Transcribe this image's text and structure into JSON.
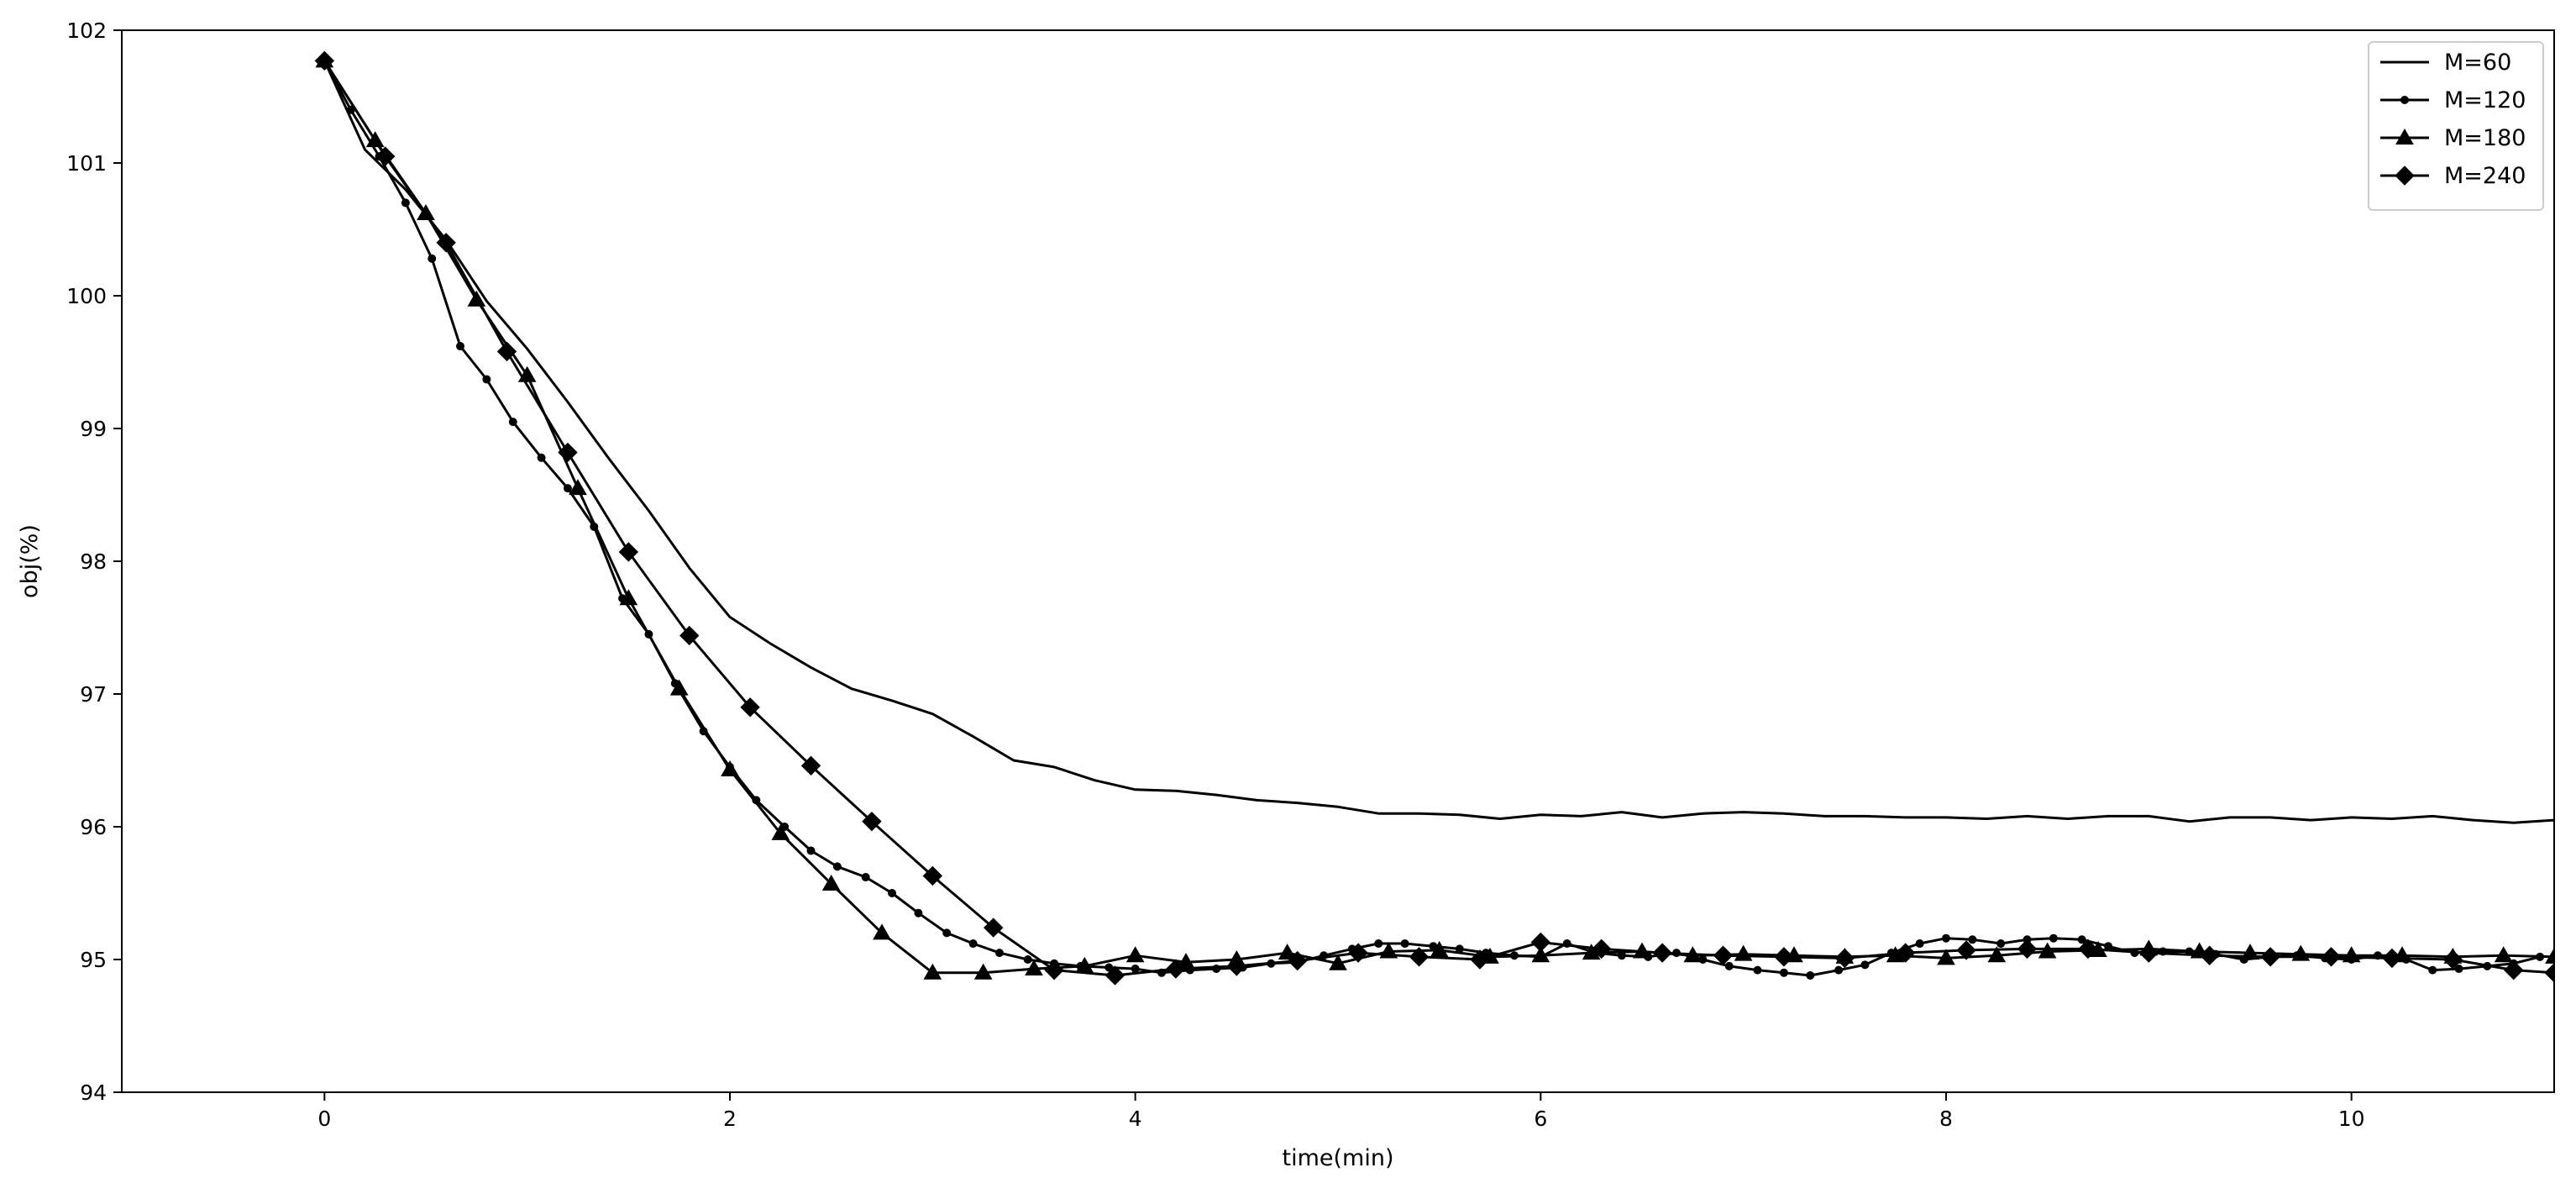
{
  "chart_data": {
    "type": "line",
    "title": "",
    "xlabel": "time(min)",
    "ylabel": "obj(%)",
    "xlim": [
      -1,
      11
    ],
    "ylim": [
      94,
      102
    ],
    "xticks": [
      0,
      2,
      4,
      6,
      8,
      10
    ],
    "yticks": [
      94,
      95,
      96,
      97,
      98,
      99,
      100,
      101,
      102
    ],
    "grid": false,
    "legend": "top-right",
    "series": [
      {
        "name": "M=60",
        "marker": "none",
        "x": [
          0,
          0.2,
          0.4,
          0.6,
          0.8,
          1.0,
          1.2,
          1.4,
          1.6,
          1.8,
          2.0,
          2.2,
          2.4,
          2.6,
          2.8,
          3.0,
          3.2,
          3.4,
          3.6,
          3.8,
          4.0,
          4.2,
          4.4,
          4.6,
          4.8,
          5.0,
          5.2,
          5.4,
          5.6,
          5.8,
          6.0,
          6.2,
          6.4,
          6.6,
          6.8,
          7.0,
          7.2,
          7.4,
          7.6,
          7.8,
          8.0,
          8.2,
          8.4,
          8.6,
          8.8,
          9.0,
          9.2,
          9.4,
          9.6,
          9.8,
          10.0,
          10.2,
          10.4,
          10.6,
          10.8,
          11.0
        ],
        "y": [
          101.77,
          101.1,
          100.8,
          100.42,
          99.96,
          99.6,
          99.2,
          98.78,
          98.38,
          97.95,
          97.58,
          97.38,
          97.2,
          97.04,
          96.95,
          96.85,
          96.68,
          96.5,
          96.45,
          96.35,
          96.28,
          96.27,
          96.24,
          96.2,
          96.18,
          96.15,
          96.1,
          96.1,
          96.09,
          96.06,
          96.09,
          96.08,
          96.11,
          96.07,
          96.1,
          96.11,
          96.1,
          96.08,
          96.08,
          96.07,
          96.07,
          96.06,
          96.08,
          96.06,
          96.08,
          96.08,
          96.04,
          96.07,
          96.07,
          96.05,
          96.07,
          96.06,
          96.08,
          96.05,
          96.03,
          96.05
        ]
      },
      {
        "name": "M=120",
        "marker": "dot",
        "x": [
          0,
          0.13,
          0.27,
          0.4,
          0.53,
          0.67,
          0.8,
          0.93,
          1.07,
          1.2,
          1.33,
          1.47,
          1.6,
          1.73,
          1.87,
          2.0,
          2.13,
          2.27,
          2.4,
          2.53,
          2.67,
          2.8,
          2.93,
          3.07,
          3.2,
          3.33,
          3.47,
          3.6,
          3.73,
          3.87,
          4.0,
          4.13,
          4.27,
          4.4,
          4.53,
          4.67,
          4.8,
          4.93,
          5.07,
          5.2,
          5.33,
          5.47,
          5.6,
          5.73,
          5.87,
          6.0,
          6.13,
          6.27,
          6.4,
          6.53,
          6.67,
          6.8,
          6.93,
          7.07,
          7.2,
          7.33,
          7.47,
          7.6,
          7.73,
          7.87,
          8.0,
          8.13,
          8.27,
          8.4,
          8.53,
          8.67,
          8.8,
          8.93,
          9.07,
          9.2,
          9.33,
          9.47,
          9.6,
          9.73,
          9.87,
          10.0,
          10.13,
          10.27,
          10.4,
          10.53,
          10.67,
          10.8,
          10.93
        ],
        "y": [
          101.77,
          101.4,
          101.05,
          100.7,
          100.28,
          99.62,
          99.37,
          99.05,
          98.78,
          98.55,
          98.26,
          97.72,
          97.45,
          97.08,
          96.72,
          96.45,
          96.2,
          96.0,
          95.82,
          95.7,
          95.62,
          95.5,
          95.35,
          95.2,
          95.12,
          95.05,
          95.0,
          94.97,
          94.95,
          94.94,
          94.93,
          94.9,
          94.92,
          94.93,
          94.94,
          94.97,
          94.98,
          95.03,
          95.08,
          95.12,
          95.12,
          95.1,
          95.08,
          95.05,
          95.03,
          95.02,
          95.12,
          95.05,
          95.03,
          95.02,
          95.05,
          95.0,
          94.95,
          94.92,
          94.9,
          94.88,
          94.92,
          94.96,
          95.05,
          95.12,
          95.16,
          95.15,
          95.12,
          95.15,
          95.16,
          95.15,
          95.1,
          95.05,
          95.06,
          95.06,
          95.04,
          95.0,
          95.02,
          95.03,
          95.01,
          95.0,
          95.03,
          95.0,
          94.92,
          94.93,
          94.95,
          94.97,
          95.02
        ]
      },
      {
        "name": "M=180",
        "marker": "triangle",
        "x": [
          0,
          0.25,
          0.5,
          0.75,
          1.0,
          1.25,
          1.5,
          1.75,
          2.0,
          2.25,
          2.5,
          2.75,
          3.0,
          3.25,
          3.5,
          3.75,
          4.0,
          4.25,
          4.5,
          4.75,
          5.0,
          5.25,
          5.5,
          5.75,
          6.0,
          6.25,
          6.5,
          6.75,
          7.0,
          7.25,
          7.5,
          7.75,
          8.0,
          8.25,
          8.5,
          8.75,
          9.0,
          9.25,
          9.5,
          9.75,
          10.0,
          10.25,
          10.5,
          10.75,
          11.0
        ],
        "y": [
          101.77,
          101.17,
          100.62,
          99.97,
          99.4,
          98.55,
          97.72,
          97.04,
          96.43,
          95.95,
          95.57,
          95.2,
          94.9,
          94.9,
          94.93,
          94.95,
          95.03,
          94.98,
          95.0,
          95.05,
          94.97,
          95.06,
          95.07,
          95.02,
          95.03,
          95.05,
          95.06,
          95.03,
          95.04,
          95.03,
          95.02,
          95.03,
          95.01,
          95.03,
          95.06,
          95.07,
          95.08,
          95.06,
          95.05,
          95.04,
          95.03,
          95.03,
          95.02,
          95.03,
          95.02
        ]
      },
      {
        "name": "M=240",
        "marker": "diamond",
        "x": [
          0,
          0.3,
          0.6,
          0.9,
          1.2,
          1.5,
          1.8,
          2.1,
          2.4,
          2.7,
          3.0,
          3.3,
          3.6,
          3.9,
          4.2,
          4.5,
          4.8,
          5.1,
          5.4,
          5.7,
          6.0,
          6.3,
          6.6,
          6.9,
          7.2,
          7.5,
          7.8,
          8.1,
          8.4,
          8.7,
          9.0,
          9.3,
          9.6,
          9.9,
          10.2,
          10.5,
          10.8,
          11.0
        ],
        "y": [
          101.77,
          101.05,
          100.4,
          99.58,
          98.82,
          98.07,
          97.44,
          96.9,
          96.46,
          96.04,
          95.63,
          95.24,
          94.92,
          94.88,
          94.93,
          94.95,
          94.99,
          95.05,
          95.02,
          95.0,
          95.13,
          95.08,
          95.05,
          95.03,
          95.02,
          95.01,
          95.05,
          95.07,
          95.08,
          95.08,
          95.05,
          95.03,
          95.02,
          95.02,
          95.01,
          95.0,
          94.92,
          94.9
        ]
      }
    ]
  }
}
